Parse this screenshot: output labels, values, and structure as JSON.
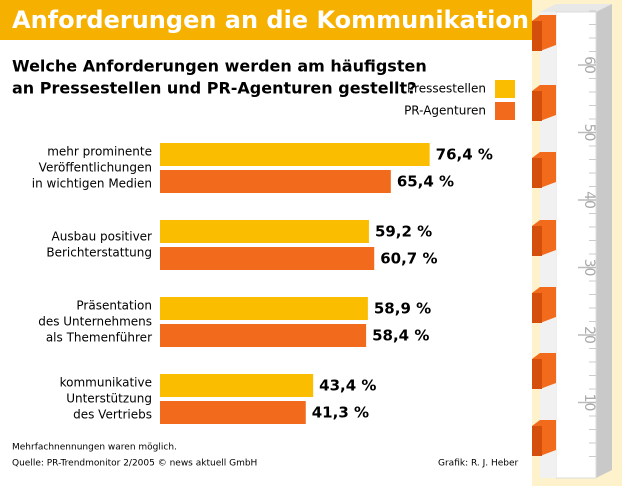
{
  "chart_data": {
    "type": "bar",
    "orientation": "horizontal",
    "title": "Anforderungen an die Kommunikation",
    "subtitle": [
      "Welche Anforderungen werden am häufigsten",
      "an Pressestellen und PR-Agenturen gestellt?"
    ],
    "categories": [
      [
        "mehr prominente",
        "Veröffentlichungen",
        "in wichtigen Medien"
      ],
      [
        "Ausbau positiver",
        "Berichterstattung"
      ],
      [
        "Präsentation",
        "des Unternehmens",
        "als Themenführer"
      ],
      [
        "kommunikative",
        "Unterstützung",
        "des Vertriebs"
      ]
    ],
    "series": [
      {
        "name": "Pressestellen",
        "color": "#fbbd00",
        "values": [
          76.4,
          59.2,
          58.9,
          43.4
        ],
        "value_labels": [
          "76,4 %",
          "59,2 %",
          "58,9 %",
          "43,4 %"
        ]
      },
      {
        "name": "PR-Agenturen",
        "color": "#f26a1b",
        "values": [
          65.4,
          60.7,
          58.4,
          41.3
        ],
        "value_labels": [
          "65,4 %",
          "60,7 %",
          "58,4 %",
          "41,3 %"
        ]
      }
    ],
    "xlim": [
      0,
      85
    ],
    "ruler_ticks": [
      10,
      20,
      30,
      40,
      50,
      60
    ],
    "notes": [
      "Mehrfachnennungen waren möglich.",
      "Quelle: PR-Trendmonitor 2/2005 © news aktuell GmbH"
    ],
    "credit": "Grafik: R. J. Heber"
  }
}
